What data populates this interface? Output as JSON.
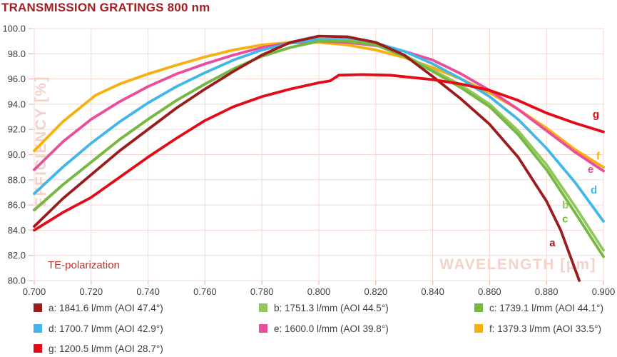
{
  "title": "TRANSMISSION GRATINGS 800 nm",
  "annotations": {
    "polarization": "TE-polarization"
  },
  "chart_data": {
    "type": "line",
    "title": "TRANSMISSION GRATINGS 800 nm",
    "xlabel": "WAVELENGTH [µm]",
    "ylabel": "EFFICIENCY [%]",
    "xlim": [
      0.7,
      0.9
    ],
    "ylim": [
      80.0,
      100.0
    ],
    "grid": true,
    "legend_position": "bottom",
    "xticks": [
      {
        "v": 0.7,
        "label": "0.700"
      },
      {
        "v": 0.72,
        "label": "0.720"
      },
      {
        "v": 0.74,
        "label": "0.740"
      },
      {
        "v": 0.76,
        "label": "0.760"
      },
      {
        "v": 0.78,
        "label": "0.780"
      },
      {
        "v": 0.8,
        "label": "0.800"
      },
      {
        "v": 0.82,
        "label": "0.820"
      },
      {
        "v": 0.84,
        "label": "0.840"
      },
      {
        "v": 0.86,
        "label": "0.860"
      },
      {
        "v": 0.88,
        "label": "0.880"
      },
      {
        "v": 0.9,
        "label": "0.900"
      }
    ],
    "yticks": [
      {
        "v": 100.0,
        "label": "100.0"
      },
      {
        "v": 98.0,
        "label": "98.0"
      },
      {
        "v": 96.0,
        "label": "96.0"
      },
      {
        "v": 94.0,
        "label": "94.0"
      },
      {
        "v": 92.0,
        "label": "92.0"
      },
      {
        "v": 90.0,
        "label": "90.0"
      },
      {
        "v": 88.0,
        "label": "88.0"
      },
      {
        "v": 86.0,
        "label": "86.0"
      },
      {
        "v": 84.0,
        "label": "84.0"
      },
      {
        "v": 82.0,
        "label": "82.0"
      },
      {
        "v": 80.0,
        "label": "80.0"
      }
    ],
    "series": [
      {
        "id": "a",
        "label": "a: 1841.6 l/mm (AOI 47.4°)",
        "color": "#9a1c1e",
        "curve_label": {
          "text": "a",
          "x": 0.881,
          "y": 83.0
        },
        "points": [
          [
            0.7,
            84.3
          ],
          [
            0.71,
            86.5
          ],
          [
            0.72,
            88.4
          ],
          [
            0.73,
            90.3
          ],
          [
            0.74,
            92.0
          ],
          [
            0.75,
            93.7
          ],
          [
            0.76,
            95.2
          ],
          [
            0.77,
            96.6
          ],
          [
            0.78,
            97.9
          ],
          [
            0.79,
            98.9
          ],
          [
            0.8,
            99.4
          ],
          [
            0.81,
            99.35
          ],
          [
            0.82,
            98.9
          ],
          [
            0.83,
            97.9
          ],
          [
            0.84,
            96.2
          ],
          [
            0.85,
            94.4
          ],
          [
            0.86,
            92.4
          ],
          [
            0.87,
            89.8
          ],
          [
            0.88,
            86.3
          ],
          [
            0.885,
            84.0
          ],
          [
            0.8915,
            80.0
          ]
        ]
      },
      {
        "id": "b",
        "label": "b: 1751.3 l/mm (AOI 44.5°)",
        "color": "#92c75e",
        "curve_label": {
          "text": "b",
          "x": 0.8855,
          "y": 86.0
        },
        "points": [
          [
            0.7,
            85.6
          ],
          [
            0.71,
            87.6
          ],
          [
            0.72,
            89.4
          ],
          [
            0.73,
            91.2
          ],
          [
            0.74,
            92.8
          ],
          [
            0.75,
            94.3
          ],
          [
            0.76,
            95.6
          ],
          [
            0.77,
            96.8
          ],
          [
            0.78,
            97.8
          ],
          [
            0.79,
            98.5
          ],
          [
            0.8,
            99.0
          ],
          [
            0.81,
            99.05
          ],
          [
            0.82,
            98.7
          ],
          [
            0.83,
            97.9
          ],
          [
            0.84,
            96.7
          ],
          [
            0.85,
            95.5
          ],
          [
            0.86,
            94.0
          ],
          [
            0.87,
            91.9
          ],
          [
            0.88,
            89.2
          ],
          [
            0.89,
            85.9
          ],
          [
            0.9,
            82.4
          ]
        ]
      },
      {
        "id": "c",
        "label": "c: 1739.1 l/mm (AOI 44.1°)",
        "color": "#75b842",
        "curve_label": {
          "text": "c",
          "x": 0.8855,
          "y": 84.9
        },
        "points": [
          [
            0.7,
            85.6
          ],
          [
            0.71,
            87.6
          ],
          [
            0.72,
            89.4
          ],
          [
            0.73,
            91.2
          ],
          [
            0.74,
            92.8
          ],
          [
            0.75,
            94.3
          ],
          [
            0.76,
            95.6
          ],
          [
            0.77,
            96.8
          ],
          [
            0.78,
            97.8
          ],
          [
            0.79,
            98.5
          ],
          [
            0.8,
            99.0
          ],
          [
            0.81,
            99.0
          ],
          [
            0.82,
            98.7
          ],
          [
            0.83,
            97.8
          ],
          [
            0.84,
            96.6
          ],
          [
            0.85,
            95.3
          ],
          [
            0.86,
            93.8
          ],
          [
            0.87,
            91.6
          ],
          [
            0.88,
            88.8
          ],
          [
            0.89,
            85.4
          ],
          [
            0.9,
            81.9
          ]
        ]
      },
      {
        "id": "d",
        "label": "d: 1700.7 l/mm (AOI 42.9°)",
        "color": "#41b6e9",
        "curve_label": {
          "text": "d",
          "x": 0.8955,
          "y": 87.2
        },
        "points": [
          [
            0.7,
            86.9
          ],
          [
            0.71,
            89.0
          ],
          [
            0.72,
            90.9
          ],
          [
            0.73,
            92.6
          ],
          [
            0.74,
            94.1
          ],
          [
            0.75,
            95.4
          ],
          [
            0.76,
            96.5
          ],
          [
            0.77,
            97.5
          ],
          [
            0.78,
            98.3
          ],
          [
            0.79,
            98.85
          ],
          [
            0.8,
            99.15
          ],
          [
            0.81,
            99.15
          ],
          [
            0.82,
            98.85
          ],
          [
            0.83,
            98.2
          ],
          [
            0.84,
            97.2
          ],
          [
            0.85,
            96.0
          ],
          [
            0.86,
            94.6
          ],
          [
            0.87,
            92.8
          ],
          [
            0.88,
            90.5
          ],
          [
            0.89,
            87.8
          ],
          [
            0.9,
            84.7
          ]
        ]
      },
      {
        "id": "e",
        "label": "e: 1600.0 l/mm (AOI 39.8°)",
        "color": "#ea4d9b",
        "curve_label": {
          "text": "e",
          "x": 0.8945,
          "y": 88.85
        },
        "points": [
          [
            0.7,
            88.8
          ],
          [
            0.71,
            91.0
          ],
          [
            0.72,
            92.8
          ],
          [
            0.73,
            94.2
          ],
          [
            0.74,
            95.4
          ],
          [
            0.75,
            96.4
          ],
          [
            0.76,
            97.2
          ],
          [
            0.77,
            97.9
          ],
          [
            0.78,
            98.5
          ],
          [
            0.79,
            98.85
          ],
          [
            0.8,
            99.0
          ],
          [
            0.81,
            98.9
          ],
          [
            0.82,
            98.65
          ],
          [
            0.83,
            98.2
          ],
          [
            0.84,
            97.5
          ],
          [
            0.85,
            96.4
          ],
          [
            0.86,
            95.1
          ],
          [
            0.87,
            93.6
          ],
          [
            0.88,
            91.9
          ],
          [
            0.89,
            90.2
          ],
          [
            0.9,
            88.7
          ]
        ]
      },
      {
        "id": "f",
        "label": "f: 1379.3 l/mm (AOI 33.5°)",
        "color": "#f7b010",
        "curve_label": {
          "text": "f",
          "x": 0.8975,
          "y": 89.9
        },
        "points": [
          [
            0.7,
            90.3
          ],
          [
            0.71,
            92.6
          ],
          [
            0.7215,
            94.7
          ],
          [
            0.73,
            95.6
          ],
          [
            0.74,
            96.4
          ],
          [
            0.75,
            97.1
          ],
          [
            0.76,
            97.75
          ],
          [
            0.77,
            98.3
          ],
          [
            0.78,
            98.7
          ],
          [
            0.79,
            98.9
          ],
          [
            0.8,
            98.9
          ],
          [
            0.81,
            98.7
          ],
          [
            0.82,
            98.3
          ],
          [
            0.83,
            97.7
          ],
          [
            0.84,
            96.9
          ],
          [
            0.85,
            96.0
          ],
          [
            0.86,
            94.9
          ],
          [
            0.87,
            93.6
          ],
          [
            0.88,
            92.1
          ],
          [
            0.89,
            90.4
          ],
          [
            0.9,
            89.0
          ]
        ]
      },
      {
        "id": "g",
        "label": "g: 1200.5 l/mm (AOI 28.7°)",
        "color": "#e30b17",
        "curve_label": {
          "text": "g",
          "x": 0.8962,
          "y": 93.2
        },
        "points": [
          [
            0.7,
            84.0
          ],
          [
            0.71,
            85.4
          ],
          [
            0.72,
            86.6
          ],
          [
            0.73,
            88.2
          ],
          [
            0.74,
            89.8
          ],
          [
            0.75,
            91.3
          ],
          [
            0.76,
            92.7
          ],
          [
            0.77,
            93.8
          ],
          [
            0.78,
            94.6
          ],
          [
            0.79,
            95.2
          ],
          [
            0.8,
            95.7
          ],
          [
            0.804,
            95.85
          ],
          [
            0.807,
            96.3
          ],
          [
            0.815,
            96.35
          ],
          [
            0.825,
            96.3
          ],
          [
            0.84,
            95.95
          ],
          [
            0.85,
            95.6
          ],
          [
            0.86,
            95.1
          ],
          [
            0.87,
            94.3
          ],
          [
            0.88,
            93.3
          ],
          [
            0.89,
            92.5
          ],
          [
            0.9,
            91.8
          ]
        ]
      }
    ]
  },
  "colors": {
    "title": "#a41e23",
    "axis_text": "#3d3d3b",
    "grid": "#f6d7d0",
    "watermark": "#f4d2c9",
    "te_label": "#c5312c"
  }
}
